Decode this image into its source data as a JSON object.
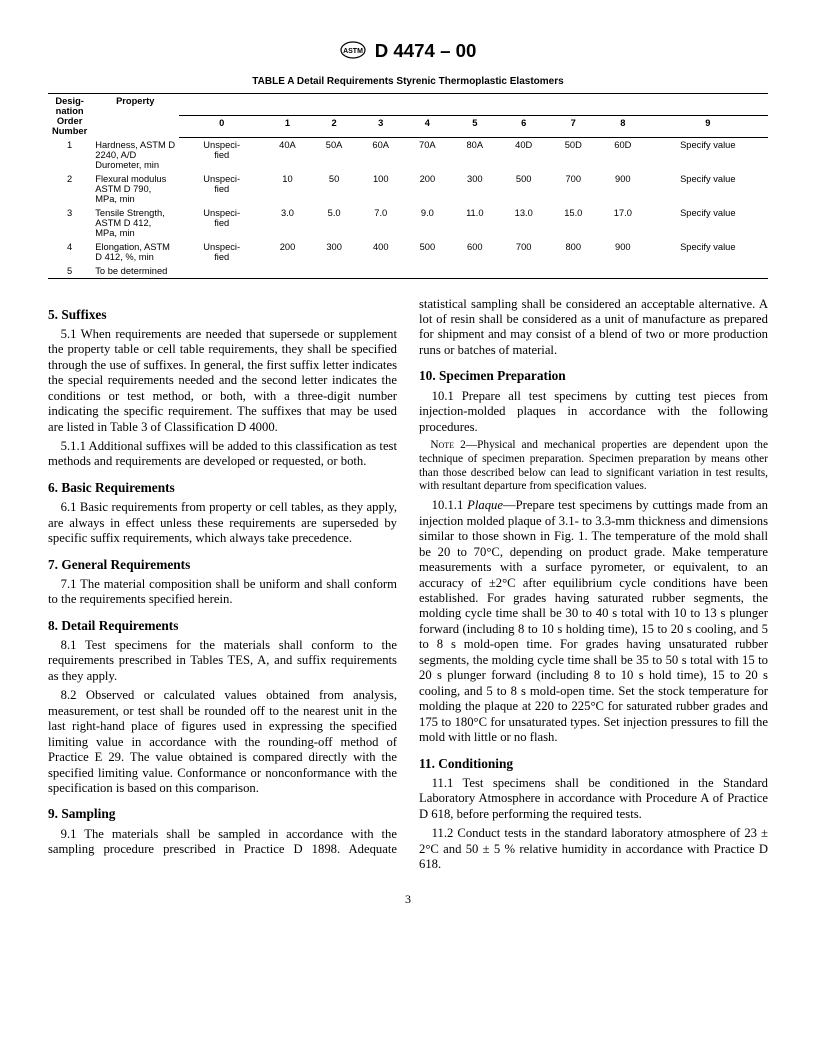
{
  "header": {
    "designation": "D 4474 – 00"
  },
  "tableA": {
    "caption": "TABLE A   Detail Requirements Styrenic Thermoplastic Elastomers",
    "head_col1": "Desig-\nnation\nOrder\nNumber",
    "head_col2": "Property",
    "cols": [
      "0",
      "1",
      "2",
      "3",
      "4",
      "5",
      "6",
      "7",
      "8",
      "9"
    ],
    "rows": [
      {
        "n": "1",
        "prop": "Hardness, ASTM D 2240, A/D Durometer, min",
        "v": [
          "Unspeci-\nfied",
          "40A",
          "50A",
          "60A",
          "70A",
          "80A",
          "40D",
          "50D",
          "60D",
          "Specify value"
        ]
      },
      {
        "n": "2",
        "prop": "Flexural modulus ASTM D 790, MPa, min",
        "v": [
          "Unspeci-\nfied",
          "10",
          "50",
          "100",
          "200",
          "300",
          "500",
          "700",
          "900",
          "Specify value"
        ]
      },
      {
        "n": "3",
        "prop": "Tensile Strength, ASTM D 412, MPa, min",
        "v": [
          "Unspeci-\nfied",
          "3.0",
          "5.0",
          "7.0",
          "9.0",
          "11.0",
          "13.0",
          "15.0",
          "17.0",
          "Specify value"
        ]
      },
      {
        "n": "4",
        "prop": "Elongation, ASTM D 412, %, min",
        "v": [
          "Unspeci-\nfied",
          "200",
          "300",
          "400",
          "500",
          "600",
          "700",
          "800",
          "900",
          "Specify value"
        ]
      },
      {
        "n": "5",
        "prop": "To be determined",
        "v": [
          "",
          "",
          "",
          "",
          "",
          "",
          "",
          "",
          "",
          ""
        ]
      }
    ]
  },
  "sections": {
    "s5": {
      "title": "5. Suffixes",
      "p1": "5.1 When requirements are needed that supersede or supplement the property table or cell table requirements, they shall be specified through the use of suffixes. In general, the first suffix letter indicates the special requirements needed and the second letter indicates the conditions or test method, or both, with a three-digit number indicating the specific requirement. The suffixes that may be used are listed in Table 3 of Classification D 4000.",
      "p2": "5.1.1 Additional suffixes will be added to this classification as test methods and requirements are developed or requested, or both."
    },
    "s6": {
      "title": "6. Basic Requirements",
      "p1": "6.1 Basic requirements from property or cell tables, as they apply, are always in effect unless these requirements are superseded by specific suffix requirements, which always take precedence."
    },
    "s7": {
      "title": "7. General Requirements",
      "p1": "7.1 The material composition shall be uniform and shall conform to the requirements specified herein."
    },
    "s8": {
      "title": "8. Detail Requirements",
      "p1": "8.1 Test specimens for the materials shall conform to the requirements prescribed in Tables TES, A, and suffix requirements as they apply.",
      "p2": "8.2 Observed or calculated values obtained from analysis, measurement, or test shall be rounded off to the nearest unit in the last right-hand place of figures used in expressing the specified limiting value in accordance with the rounding-off method of Practice E 29. The value obtained is compared directly with the specified limiting value. Conformance or nonconformance with the specification is based on this comparison."
    },
    "s9": {
      "title": "9. Sampling",
      "p1": "9.1 The materials shall be sampled in accordance with the sampling procedure prescribed in Practice D 1898. Adequate statistical sampling shall be considered an acceptable alternative. A lot of resin shall be considered as a unit of manufacture as prepared for shipment and may consist of a blend of two or more production runs or batches of material."
    },
    "s10": {
      "title": "10. Specimen Preparation",
      "p1": "10.1 Prepare all test specimens by cutting test pieces from injection-molded plaques in accordance with the following procedures.",
      "note": "Physical and mechanical properties are dependent upon the technique of specimen preparation. Specimen preparation by means other than those described below can lead to significant variation in test results, with resultant departure from specification values.",
      "p2lead": "Plaque",
      "p2": "—Prepare test specimens by cuttings made from an injection molded plaque of 3.1- to 3.3-mm thickness and dimensions similar to those shown in Fig. 1. The temperature of the mold shall be 20 to 70°C, depending on product grade. Make temperature measurements with a surface pyrometer, or equivalent, to an accuracy of ±2°C after equilibrium cycle conditions have been established. For grades having saturated rubber segments, the molding cycle time shall be 30 to 40 s total with 10 to 13 s plunger forward (including 8 to 10 s holding time), 15 to 20 s cooling, and 5 to 8 s mold-open time. For grades having unsaturated rubber segments, the molding cycle time shall be 35 to 50 s total with 15 to 20 s plunger forward (including 8 to 10 s hold time), 15 to 20 s cooling, and 5 to 8 s mold-open time. Set the stock temperature for molding the plaque at 220 to 225°C for saturated rubber grades and 175 to 180°C for unsaturated types. Set injection pressures to fill the mold with little or no flash."
    },
    "s11": {
      "title": "11. Conditioning",
      "p1": "11.1 Test specimens shall be conditioned in the Standard Laboratory Atmosphere in accordance with Procedure A of Practice D 618, before performing the required tests.",
      "p2": "11.2 Conduct tests in the standard laboratory atmosphere of 23 ± 2°C and 50 ± 5 % relative humidity in accordance with Practice D 618."
    }
  },
  "page_number": "3"
}
